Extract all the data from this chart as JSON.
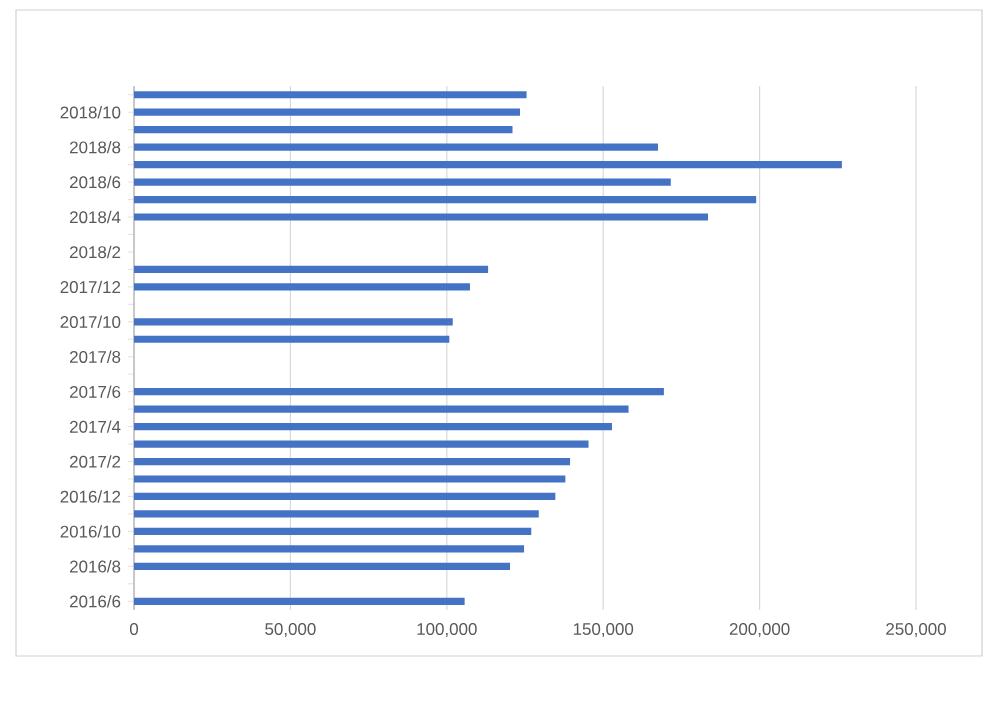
{
  "chart_data": {
    "type": "bar",
    "orientation": "horizontal",
    "categories": [
      null,
      "2018/10",
      null,
      "2018/8",
      null,
      "2018/6",
      null,
      "2018/4",
      null,
      "2018/2",
      null,
      "2017/12",
      null,
      "2017/10",
      null,
      "2017/8",
      null,
      "2017/6",
      null,
      "2017/4",
      null,
      "2017/2",
      null,
      "2016/12",
      null,
      "2016/10",
      null,
      "2016/8",
      null,
      "2016/6"
    ],
    "values": [
      125500,
      123400,
      121000,
      167500,
      226300,
      171600,
      198900,
      183500,
      null,
      null,
      113200,
      107400,
      null,
      101900,
      100800,
      null,
      null,
      169400,
      158100,
      152800,
      145300,
      139400,
      137900,
      134700,
      129400,
      127000,
      124700,
      120200,
      null,
      105700
    ],
    "color": "#4472c4",
    "xlim": [
      0,
      250000
    ],
    "xticks": [
      0,
      {
        "value": 50000,
        "label": "50,000"
      },
      {
        "value": 100000,
        "label": "100,000"
      },
      {
        "value": 150000,
        "label": "150,000"
      },
      {
        "value": 200000,
        "label": "200,000"
      },
      {
        "value": 250000,
        "label": "250,000"
      }
    ],
    "grid": "x"
  }
}
